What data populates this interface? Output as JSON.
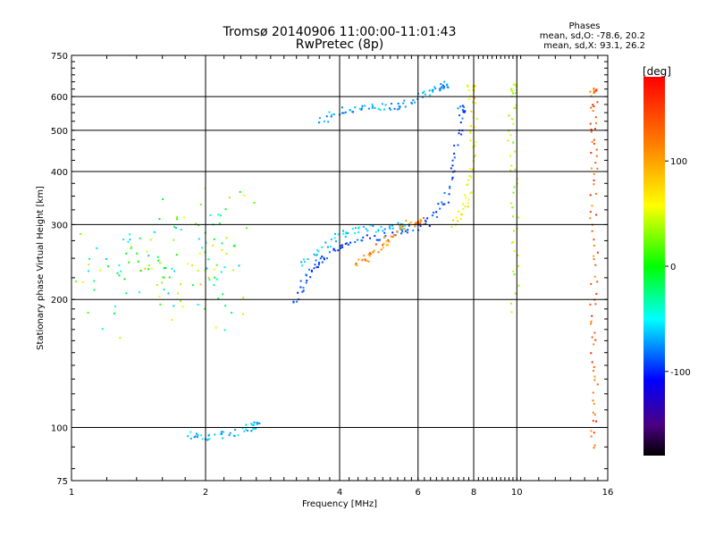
{
  "chart_data": {
    "type": "scatter",
    "title": "Tromsø 20140906 11:00:00-11:01:43",
    "subtitle": "RwPretec (8p)",
    "xlabel": "Frequency [MHz]",
    "ylabel": "Stationary phase Virtual Height [km]",
    "x_scale": "log",
    "y_scale": "log",
    "xlim": [
      1,
      16
    ],
    "ylim": [
      75,
      750
    ],
    "x_ticks": [
      "1",
      "2",
      "4",
      "6",
      "8",
      "10",
      "16"
    ],
    "y_ticks": [
      "75",
      "100",
      "200",
      "300",
      "400",
      "500",
      "600",
      "750"
    ],
    "x_grid_lines": [
      2,
      4,
      6,
      8,
      10
    ],
    "y_grid_lines": [
      100,
      200,
      300,
      400,
      500,
      600
    ],
    "phase_stats": {
      "heading": "Phases",
      "o_mode": "mean, sd,O: -78.6, 20.2",
      "x_mode": "mean, sd,X:  93.1, 26.2"
    },
    "colorbar": {
      "unit": "[deg]",
      "ticks": [
        "100",
        "0",
        "-100"
      ],
      "tick_values": [
        100,
        0,
        -100
      ],
      "range": [
        -180,
        180
      ],
      "colormap": "rainbow"
    },
    "traces": [
      {
        "name": "",
        "phase": -90,
        "points": [
          [
            3.6,
            520
          ],
          [
            3.9,
            545
          ],
          [
            4.2,
            560
          ],
          [
            4.6,
            565
          ],
          [
            5.0,
            568
          ],
          [
            5.4,
            570
          ],
          [
            5.8,
            585
          ],
          [
            6.2,
            605
          ],
          [
            6.6,
            625
          ],
          [
            6.9,
            640
          ]
        ]
      },
      {
        "name": "",
        "phase": -115,
        "points": [
          [
            3.2,
            195
          ],
          [
            3.3,
            215
          ],
          [
            3.45,
            235
          ],
          [
            3.6,
            245
          ],
          [
            3.8,
            255
          ],
          [
            4.1,
            270
          ],
          [
            4.5,
            278
          ],
          [
            5.0,
            282
          ],
          [
            5.6,
            288
          ],
          [
            6.1,
            297
          ],
          [
            6.5,
            315
          ],
          [
            6.9,
            345
          ],
          [
            7.2,
            400
          ],
          [
            7.4,
            480
          ],
          [
            7.5,
            560
          ]
        ]
      },
      {
        "name": "",
        "phase": -75,
        "points": [
          [
            3.3,
            240
          ],
          [
            3.6,
            262
          ],
          [
            3.9,
            280
          ],
          [
            4.2,
            290
          ],
          [
            4.6,
            293
          ],
          [
            5.0,
            295
          ],
          [
            5.5,
            298
          ]
        ]
      },
      {
        "name": "",
        "phase": -80,
        "points": [
          [
            1.85,
            96
          ],
          [
            1.95,
            94
          ],
          [
            2.1,
            95
          ],
          [
            2.3,
            97
          ],
          [
            2.5,
            100
          ],
          [
            2.6,
            101
          ]
        ]
      },
      {
        "name": "",
        "phase": 100,
        "points": [
          [
            7.2,
            300
          ],
          [
            7.5,
            320
          ],
          [
            7.8,
            350
          ],
          [
            7.95,
            400
          ],
          [
            8.0,
            480
          ],
          [
            8.0,
            560
          ],
          [
            7.9,
            630
          ]
        ]
      },
      {
        "name": "",
        "phase": 140,
        "points": [
          [
            4.4,
            240
          ],
          [
            4.6,
            250
          ],
          [
            4.8,
            262
          ],
          [
            5.0,
            270
          ],
          [
            5.3,
            285
          ],
          [
            5.7,
            300
          ],
          [
            6.1,
            305
          ]
        ]
      },
      {
        "name": "",
        "phase": 150,
        "points": [
          [
            14.9,
            90
          ],
          [
            14.9,
            110
          ],
          [
            14.9,
            140
          ],
          [
            14.9,
            180
          ],
          [
            14.9,
            230
          ],
          [
            14.9,
            300
          ],
          [
            14.9,
            380
          ],
          [
            14.9,
            460
          ],
          [
            14.9,
            540
          ],
          [
            14.9,
            620
          ]
        ]
      },
      {
        "name": "",
        "phase": 70,
        "points": [
          [
            9.9,
            190
          ],
          [
            9.9,
            250
          ],
          [
            9.9,
            330
          ],
          [
            9.8,
            420
          ],
          [
            9.7,
            540
          ],
          [
            9.9,
            630
          ]
        ]
      },
      {
        "name": "",
        "phase": 20,
        "points": [
          [
            1.05,
            200
          ],
          [
            1.15,
            270
          ],
          [
            1.3,
            230
          ],
          [
            1.45,
            300
          ],
          [
            1.6,
            250
          ],
          [
            1.75,
            210
          ],
          [
            1.9,
            290
          ],
          [
            2.05,
            240
          ],
          [
            2.2,
            305
          ],
          [
            2.45,
            315
          ],
          [
            1.25,
            190
          ],
          [
            1.55,
            220
          ],
          [
            1.85,
            260
          ],
          [
            2.1,
            200
          ]
        ]
      }
    ]
  }
}
